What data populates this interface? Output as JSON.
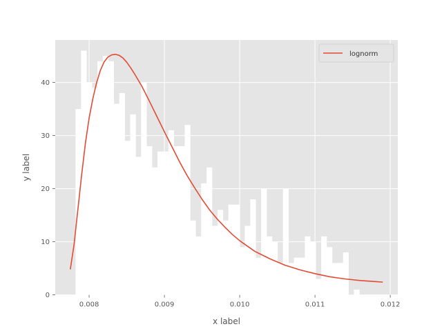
{
  "chart_data": {
    "type": "bar",
    "title": "",
    "xlabel": "x label",
    "ylabel": "y label",
    "xlim": [
      0.00755,
      0.0121
    ],
    "ylim": [
      0,
      48
    ],
    "grid": true,
    "style": "ggplot",
    "x_ticks": [
      0.008,
      0.009,
      0.01,
      0.011,
      0.012
    ],
    "x_tick_labels": [
      "0.008",
      "0.009",
      "0.010",
      "0.011",
      "0.012"
    ],
    "y_ticks": [
      0,
      10,
      20,
      30,
      40
    ],
    "y_tick_labels": [
      "0",
      "10",
      "20",
      "30",
      "40"
    ],
    "histogram": {
      "bin_start": 0.00782,
      "bin_width": 7.25e-05,
      "counts": [
        35,
        46,
        40,
        39,
        44,
        45,
        44,
        36,
        38,
        29,
        34,
        26,
        40,
        28,
        24,
        27,
        27,
        31,
        28,
        28,
        32,
        14,
        11,
        21,
        24,
        13,
        16,
        14,
        17,
        17,
        9,
        13,
        18,
        7,
        20,
        11,
        10,
        6,
        20,
        6,
        7,
        7,
        11,
        10,
        3,
        11,
        9,
        6,
        6,
        8,
        0,
        1
      ]
    },
    "series": [
      {
        "name": "lognorm",
        "x": [
          0.00775,
          0.0078,
          0.00785,
          0.0079,
          0.00795,
          0.008,
          0.00805,
          0.0081,
          0.00815,
          0.0082,
          0.00825,
          0.0083,
          0.00835,
          0.0084,
          0.00845,
          0.0085,
          0.00855,
          0.0086,
          0.0087,
          0.0088,
          0.0089,
          0.009,
          0.0091,
          0.0092,
          0.0093,
          0.0094,
          0.0095,
          0.0096,
          0.0097,
          0.0098,
          0.0099,
          0.01,
          0.0102,
          0.0104,
          0.0106,
          0.0108,
          0.011,
          0.0112,
          0.0114,
          0.0116,
          0.0118,
          0.0119
        ],
        "values": [
          4.8,
          9.5,
          16.0,
          22.5,
          28.5,
          33.3,
          37.0,
          40.0,
          42.3,
          43.9,
          44.8,
          45.2,
          45.3,
          45.1,
          44.6,
          43.8,
          42.8,
          41.7,
          39.3,
          36.5,
          33.6,
          30.7,
          27.9,
          25.1,
          22.5,
          20.2,
          18.0,
          16.0,
          14.3,
          12.8,
          11.4,
          10.2,
          8.2,
          6.8,
          5.6,
          4.7,
          4.0,
          3.4,
          3.0,
          2.7,
          2.5,
          2.4
        ],
        "color": "#E24A33"
      }
    ],
    "legend": {
      "position": "top-right",
      "entries": [
        "lognorm"
      ]
    },
    "colors": {
      "plot_bg": "#E5E5E5",
      "grid": "#FFFFFF",
      "bars": "#FFFFFF",
      "line": "#E24A33",
      "text": "#555555"
    }
  }
}
